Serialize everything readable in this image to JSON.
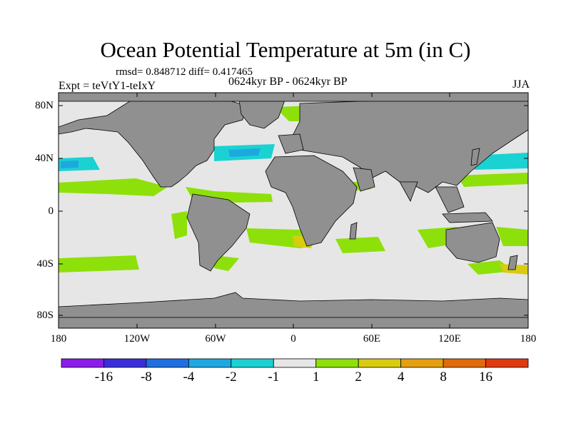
{
  "title": "Ocean Potential Temperature at 5m (in C)",
  "stats": "rmsd= 0.848712 diff= 0.417465",
  "experiment": "Expt = teVtY1-teIxY",
  "period": "0624kyr BP - 0624kyr BP",
  "season": "JJA",
  "y_axis_labels": [
    "80N",
    "40N",
    "0",
    "40S",
    "80S"
  ],
  "x_axis_labels": [
    "180",
    "120W",
    "60W",
    "0",
    "60E",
    "120E",
    "180"
  ],
  "colorbar": {
    "labels": [
      "-16",
      "-8",
      "-4",
      "-2",
      "-1",
      "1",
      "2",
      "4",
      "8",
      "16"
    ],
    "colors": [
      "#8a1ee8",
      "#3a2ed8",
      "#1f6fe0",
      "#1fa8e0",
      "#1ad2d2",
      "#e6e6e6",
      "#8ee00a",
      "#d8cc10",
      "#e4a010",
      "#e06a0c",
      "#e03a10"
    ]
  },
  "colors": {
    "land": "#909090",
    "ocean_neutral": "#e6e6e6",
    "warm_small": "#8ee00a",
    "warm_mid": "#d8cc10",
    "cool_small": "#1ad2d2",
    "cool_mid": "#1fa8e0"
  }
}
